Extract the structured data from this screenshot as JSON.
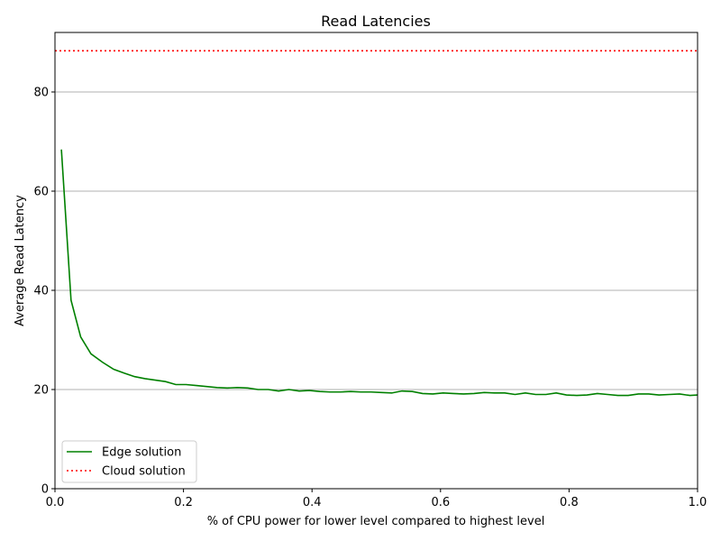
{
  "chart_data": {
    "type": "line",
    "title": "Read Latencies",
    "xlabel": "% of CPU power for lower level compared to highest level",
    "ylabel": "Average Read Latency",
    "xlim": [
      0,
      1.0
    ],
    "ylim": [
      0,
      92
    ],
    "x_ticks": [
      0.0,
      0.2,
      0.4,
      0.6,
      0.8,
      1.0
    ],
    "x_tick_labels": [
      "0.0",
      "0.2",
      "0.4",
      "0.6",
      "0.8",
      "1.0"
    ],
    "y_ticks": [
      0,
      20,
      40,
      60,
      80
    ],
    "y_tick_labels": [
      "0",
      "20",
      "40",
      "60",
      "80"
    ],
    "grid": "horizontal",
    "legend_position": "lower-left",
    "series": [
      {
        "name": "Edge solution",
        "style": "solid",
        "color": "#008000",
        "x": [
          0.01,
          0.025,
          0.04,
          0.056,
          0.074,
          0.091,
          0.108,
          0.124,
          0.14,
          0.156,
          0.172,
          0.188,
          0.204,
          0.22,
          0.236,
          0.252,
          0.268,
          0.284,
          0.3,
          0.316,
          0.332,
          0.348,
          0.364,
          0.38,
          0.396,
          0.412,
          0.428,
          0.444,
          0.46,
          0.476,
          0.492,
          0.508,
          0.524,
          0.54,
          0.556,
          0.572,
          0.588,
          0.604,
          0.62,
          0.636,
          0.652,
          0.668,
          0.684,
          0.7,
          0.716,
          0.732,
          0.748,
          0.764,
          0.78,
          0.796,
          0.812,
          0.828,
          0.844,
          0.86,
          0.876,
          0.892,
          0.908,
          0.924,
          0.94,
          0.956,
          0.972,
          0.988,
          1.0
        ],
        "y": [
          68.4,
          38.0,
          30.6,
          27.2,
          25.5,
          24.1,
          23.3,
          22.6,
          22.2,
          21.9,
          21.6,
          21.0,
          21.0,
          20.8,
          20.6,
          20.4,
          20.3,
          20.4,
          20.3,
          20.0,
          20.0,
          19.7,
          20.0,
          19.7,
          19.8,
          19.6,
          19.5,
          19.5,
          19.6,
          19.5,
          19.5,
          19.4,
          19.3,
          19.7,
          19.6,
          19.2,
          19.1,
          19.3,
          19.2,
          19.1,
          19.2,
          19.4,
          19.3,
          19.3,
          19.0,
          19.3,
          19.0,
          19.0,
          19.3,
          18.9,
          18.8,
          18.9,
          19.2,
          19.0,
          18.8,
          18.8,
          19.1,
          19.1,
          18.9,
          19.0,
          19.1,
          18.8,
          18.9
        ]
      },
      {
        "name": "Cloud solution",
        "style": "dotted",
        "color": "#ff0000",
        "x": [
          0.0,
          1.0
        ],
        "y": [
          88.3,
          88.3
        ]
      }
    ]
  }
}
